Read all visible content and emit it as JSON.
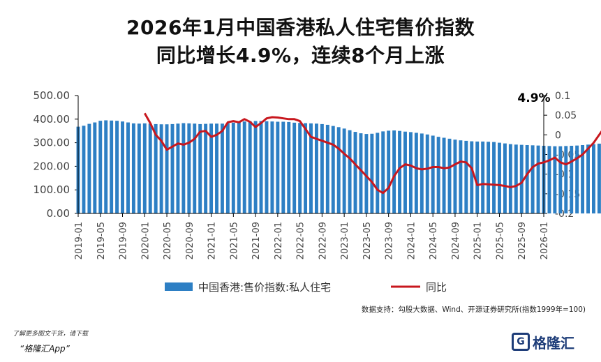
{
  "header": {
    "title_line1": "2026年1月中国香港私人住宅售价指数",
    "title_line2": "同比增长4.9%，连续8个月上涨"
  },
  "source_note": "数据支持：勾股大数据、Wind、开源证券研究所(指数1999年=100)",
  "footer": {
    "hint_line1": "了解更多图文干货，请下载",
    "hint_line2": "“格隆汇App”",
    "logo_mark": "G",
    "logo_text": "格隆汇"
  },
  "colors": {
    "bar": "#2d7fc4",
    "line": "#c8171e",
    "axis": "#000000"
  },
  "chart_data": {
    "type": "bar+line",
    "annotation": "4.9%",
    "left_axis": {
      "min": 0,
      "max": 500,
      "ticks": [
        "0.00",
        "100.00",
        "200.00",
        "300.00",
        "400.00",
        "500.00"
      ]
    },
    "right_axis": {
      "min": -0.2,
      "max": 0.1,
      "ticks": [
        "-0.2",
        "-0.15",
        "-0.1",
        "-0.05",
        "0",
        "0.05",
        "0.1"
      ]
    },
    "x_tick_labels": [
      "2019-01",
      "2019-05",
      "2019-09",
      "2020-01",
      "2020-05",
      "2020-09",
      "2021-01",
      "2021-05",
      "2021-09",
      "2022-01",
      "2022-05",
      "2022-09",
      "2023-01",
      "2023-05",
      "2023-09",
      "2024-01",
      "2024-05",
      "2024-09",
      "2025-01",
      "2025-05",
      "2025-09",
      "2026-01"
    ],
    "legend_position": "bottom",
    "series": [
      {
        "name": "中国香港:售价指数:私人住宅",
        "kind": "bar",
        "axis": "left",
        "start": "2019-01",
        "values": [
          368,
          372,
          380,
          386,
          393,
          395,
          394,
          393,
          390,
          386,
          382,
          381,
          382,
          381,
          379,
          378,
          378,
          379,
          381,
          383,
          382,
          381,
          379,
          380,
          381,
          381,
          381,
          383,
          385,
          388,
          390,
          391,
          392,
          392,
          391,
          390,
          389,
          389,
          388,
          385,
          384,
          383,
          382,
          381,
          379,
          376,
          371,
          366,
          360,
          353,
          346,
          340,
          337,
          338,
          342,
          348,
          351,
          352,
          350,
          347,
          345,
          342,
          339,
          335,
          330,
          325,
          321,
          317,
          313,
          310,
          308,
          306,
          305,
          305,
          304,
          303,
          300,
          297,
          294,
          292,
          291,
          290,
          289,
          288,
          287,
          286,
          285,
          285,
          286,
          287,
          288,
          290,
          292,
          294,
          296,
          297,
          298
        ]
      },
      {
        "name": "同比",
        "kind": "line",
        "axis": "right",
        "start": "2020-01",
        "values": [
          0.055,
          0.03,
          0.0,
          -0.015,
          -0.038,
          -0.03,
          -0.022,
          -0.025,
          -0.02,
          -0.01,
          0.008,
          0.01,
          -0.005,
          0.0,
          0.01,
          0.032,
          0.035,
          0.032,
          0.04,
          0.033,
          0.02,
          0.03,
          0.042,
          0.045,
          0.044,
          0.042,
          0.04,
          0.04,
          0.035,
          0.015,
          -0.005,
          -0.01,
          -0.015,
          -0.02,
          -0.025,
          -0.035,
          -0.048,
          -0.06,
          -0.075,
          -0.09,
          -0.105,
          -0.12,
          -0.14,
          -0.148,
          -0.135,
          -0.105,
          -0.085,
          -0.075,
          -0.078,
          -0.085,
          -0.088,
          -0.086,
          -0.082,
          -0.082,
          -0.085,
          -0.083,
          -0.075,
          -0.068,
          -0.07,
          -0.085,
          -0.128,
          -0.125,
          -0.126,
          -0.127,
          -0.128,
          -0.13,
          -0.133,
          -0.13,
          -0.122,
          -0.1,
          -0.082,
          -0.073,
          -0.07,
          -0.065,
          -0.058,
          -0.07,
          -0.075,
          -0.068,
          -0.06,
          -0.05,
          -0.035,
          -0.02,
          0.0,
          0.02,
          0.015,
          0.025,
          0.035,
          0.045,
          0.05
        ]
      }
    ]
  }
}
